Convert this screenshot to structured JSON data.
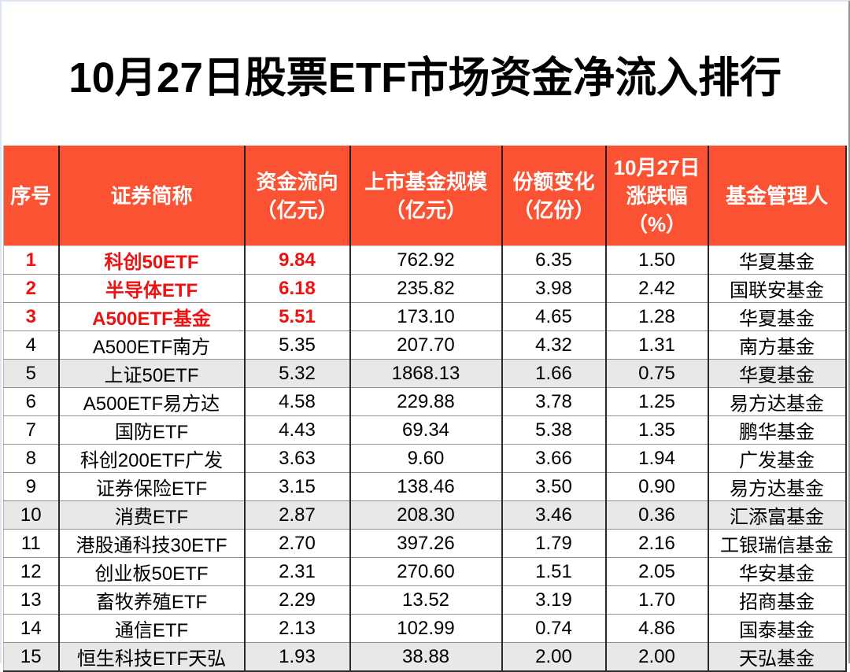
{
  "title": "10月27日股票ETF市场资金净流入排行",
  "colors": {
    "header_bg": "#fa5232",
    "header_text": "#ffffff",
    "highlight_text": "#ee1111",
    "shaded_row_bg": "#e8e8e8",
    "body_text": "#000000"
  },
  "table": {
    "headers": [
      {
        "label": "序号"
      },
      {
        "label": "证券简称"
      },
      {
        "label": "资金流向\n（亿元）"
      },
      {
        "label": "上市基金规模\n（亿元）"
      },
      {
        "label": "份额变化\n（亿份）"
      },
      {
        "label": "10月27日\n涨跌幅\n（%）"
      },
      {
        "label": "基金管理人"
      }
    ],
    "rows": [
      {
        "rank": "1",
        "name": "科创50ETF",
        "flow": "9.84",
        "scale": "762.92",
        "share_change": "6.35",
        "change_pct": "1.50",
        "manager": "华夏基金",
        "highlighted": true,
        "shaded": false
      },
      {
        "rank": "2",
        "name": "半导体ETF",
        "flow": "6.18",
        "scale": "235.82",
        "share_change": "3.98",
        "change_pct": "2.42",
        "manager": "国联安基金",
        "highlighted": true,
        "shaded": false
      },
      {
        "rank": "3",
        "name": "A500ETF基金",
        "flow": "5.51",
        "scale": "173.10",
        "share_change": "4.65",
        "change_pct": "1.28",
        "manager": "华夏基金",
        "highlighted": true,
        "shaded": false
      },
      {
        "rank": "4",
        "name": "A500ETF南方",
        "flow": "5.35",
        "scale": "207.70",
        "share_change": "4.32",
        "change_pct": "1.31",
        "manager": "南方基金",
        "highlighted": false,
        "shaded": false
      },
      {
        "rank": "5",
        "name": "上证50ETF",
        "flow": "5.32",
        "scale": "1868.13",
        "share_change": "1.66",
        "change_pct": "0.75",
        "manager": "华夏基金",
        "highlighted": false,
        "shaded": true
      },
      {
        "rank": "6",
        "name": "A500ETF易方达",
        "flow": "4.58",
        "scale": "229.88",
        "share_change": "3.78",
        "change_pct": "1.25",
        "manager": "易方达基金",
        "highlighted": false,
        "shaded": false
      },
      {
        "rank": "7",
        "name": "国防ETF",
        "flow": "4.43",
        "scale": "69.34",
        "share_change": "5.38",
        "change_pct": "1.35",
        "manager": "鹏华基金",
        "highlighted": false,
        "shaded": false
      },
      {
        "rank": "8",
        "name": "科创200ETF广发",
        "flow": "3.63",
        "scale": "9.60",
        "share_change": "3.66",
        "change_pct": "1.94",
        "manager": "广发基金",
        "highlighted": false,
        "shaded": false
      },
      {
        "rank": "9",
        "name": "证券保险ETF",
        "flow": "3.15",
        "scale": "138.46",
        "share_change": "3.50",
        "change_pct": "0.90",
        "manager": "易方达基金",
        "highlighted": false,
        "shaded": false
      },
      {
        "rank": "10",
        "name": "消费ETF",
        "flow": "2.87",
        "scale": "208.30",
        "share_change": "3.46",
        "change_pct": "0.36",
        "manager": "汇添富基金",
        "highlighted": false,
        "shaded": true
      },
      {
        "rank": "11",
        "name": "港股通科技30ETF",
        "flow": "2.70",
        "scale": "397.26",
        "share_change": "1.79",
        "change_pct": "2.16",
        "manager": "工银瑞信基金",
        "highlighted": false,
        "shaded": false
      },
      {
        "rank": "12",
        "name": "创业板50ETF",
        "flow": "2.31",
        "scale": "270.60",
        "share_change": "1.51",
        "change_pct": "2.05",
        "manager": "华安基金",
        "highlighted": false,
        "shaded": false
      },
      {
        "rank": "13",
        "name": "畜牧养殖ETF",
        "flow": "2.29",
        "scale": "13.52",
        "share_change": "3.19",
        "change_pct": "1.70",
        "manager": "招商基金",
        "highlighted": false,
        "shaded": false
      },
      {
        "rank": "14",
        "name": "通信ETF",
        "flow": "2.13",
        "scale": "102.99",
        "share_change": "0.74",
        "change_pct": "4.86",
        "manager": "国泰基金",
        "highlighted": false,
        "shaded": false
      },
      {
        "rank": "15",
        "name": "恒生科技ETF天弘",
        "flow": "1.93",
        "scale": "38.88",
        "share_change": "2.00",
        "change_pct": "2.00",
        "manager": "天弘基金",
        "highlighted": false,
        "shaded": true
      }
    ]
  },
  "chart_data": {
    "type": "table",
    "title": "10月27日股票ETF市场资金净流入排行",
    "columns": [
      "序号",
      "证券简称",
      "资金流向（亿元）",
      "上市基金规模（亿元）",
      "份额变化（亿份）",
      "10月27日涨跌幅（%）",
      "基金管理人"
    ],
    "rows": [
      [
        1,
        "科创50ETF",
        9.84,
        762.92,
        6.35,
        1.5,
        "华夏基金"
      ],
      [
        2,
        "半导体ETF",
        6.18,
        235.82,
        3.98,
        2.42,
        "国联安基金"
      ],
      [
        3,
        "A500ETF基金",
        5.51,
        173.1,
        4.65,
        1.28,
        "华夏基金"
      ],
      [
        4,
        "A500ETF南方",
        5.35,
        207.7,
        4.32,
        1.31,
        "南方基金"
      ],
      [
        5,
        "上证50ETF",
        5.32,
        1868.13,
        1.66,
        0.75,
        "华夏基金"
      ],
      [
        6,
        "A500ETF易方达",
        4.58,
        229.88,
        3.78,
        1.25,
        "易方达基金"
      ],
      [
        7,
        "国防ETF",
        4.43,
        69.34,
        5.38,
        1.35,
        "鹏华基金"
      ],
      [
        8,
        "科创200ETF广发",
        3.63,
        9.6,
        3.66,
        1.94,
        "广发基金"
      ],
      [
        9,
        "证券保险ETF",
        3.15,
        138.46,
        3.5,
        0.9,
        "易方达基金"
      ],
      [
        10,
        "消费ETF",
        2.87,
        208.3,
        3.46,
        0.36,
        "汇添富基金"
      ],
      [
        11,
        "港股通科技30ETF",
        2.7,
        397.26,
        1.79,
        2.16,
        "工银瑞信基金"
      ],
      [
        12,
        "创业板50ETF",
        2.31,
        270.6,
        1.51,
        2.05,
        "华安基金"
      ],
      [
        13,
        "畜牧养殖ETF",
        2.29,
        13.52,
        3.19,
        1.7,
        "招商基金"
      ],
      [
        14,
        "通信ETF",
        2.13,
        102.99,
        0.74,
        4.86,
        "国泰基金"
      ],
      [
        15,
        "恒生科技ETF天弘",
        1.93,
        38.88,
        2.0,
        2.0,
        "天弘基金"
      ]
    ],
    "notes": "Rows 1-3 emphasized in red bold (rank, name, flow columns); rows 5, 10, 15 have gray shaded background"
  }
}
